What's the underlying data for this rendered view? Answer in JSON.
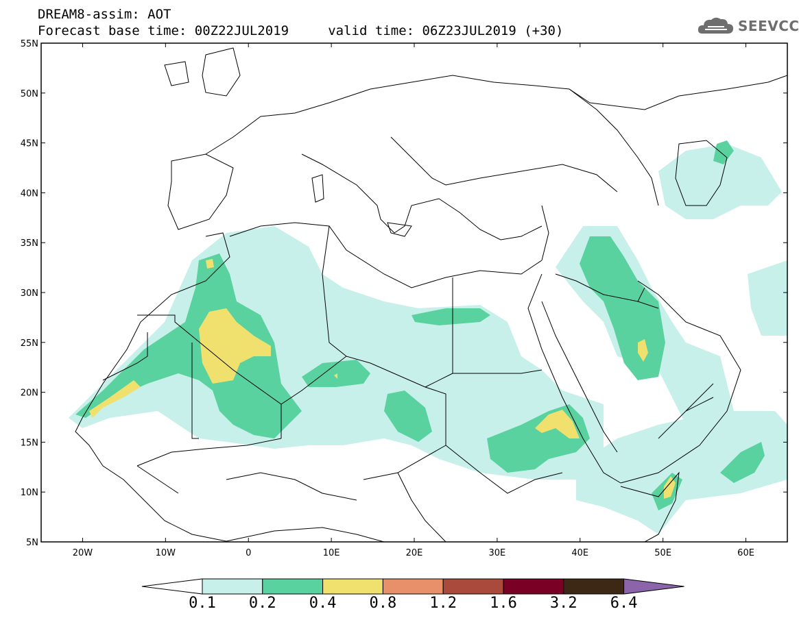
{
  "header": {
    "line1": "DREAM8-assim: AOT",
    "line2": "Forecast base time: 00Z22JUL2019     valid time: 06Z23JUL2019 (+30)"
  },
  "logo": {
    "text": "SEEVCCC",
    "icon": "cloud-logo-icon"
  },
  "map": {
    "lon_range": [
      -25,
      65
    ],
    "lat_range": [
      5,
      55
    ],
    "x_ticks": [
      "20W",
      "10W",
      "0",
      "10E",
      "20E",
      "30E",
      "40E",
      "50E",
      "60E"
    ],
    "y_ticks": [
      "55N",
      "50N",
      "45N",
      "40N",
      "35N",
      "30N",
      "25N",
      "20N",
      "15N",
      "10N",
      "5N"
    ]
  },
  "colorbar": {
    "levels": [
      "0.1",
      "0.2",
      "0.4",
      "0.8",
      "1.2",
      "1.6",
      "3.2",
      "6.4"
    ],
    "colors": [
      "#c8f0eb",
      "#5ad2a0",
      "#f0e06e",
      "#e8906a",
      "#aa4a3c",
      "#7a0026",
      "#3c2814",
      "#8c64aa"
    ]
  }
}
